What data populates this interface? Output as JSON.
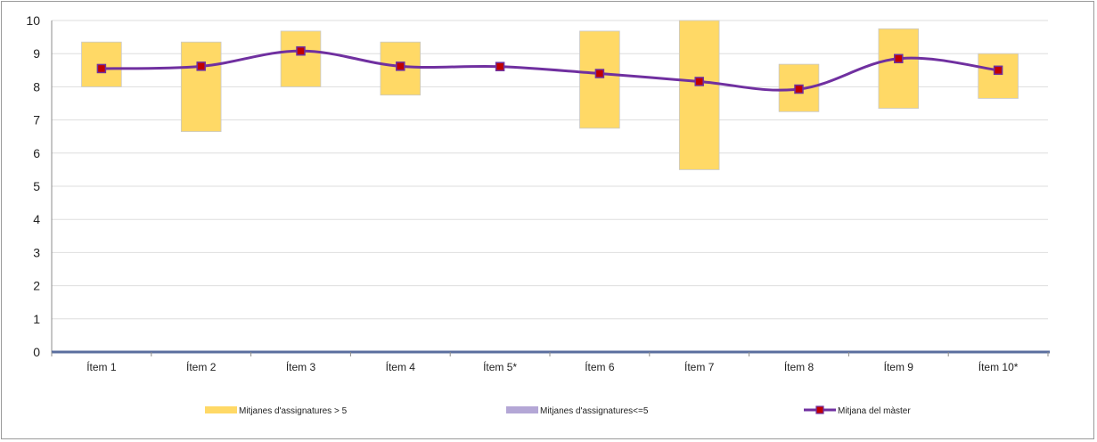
{
  "chart_data": {
    "type": "line",
    "categories": [
      "Ítem 1",
      "Ítem 2",
      "Ítem 3",
      "Ítem 4",
      "Ítem 5*",
      "Ítem 6",
      "Ítem 7",
      "Ítem 8",
      "Ítem 9",
      "Ítem 10*"
    ],
    "ylim": [
      0,
      10
    ],
    "yticks": [
      "0",
      "1",
      "2",
      "3",
      "4",
      "5",
      "6",
      "7",
      "8",
      "9",
      "10"
    ],
    "grid": true,
    "legend_position": "bottom",
    "series": [
      {
        "name": "Mitjanes d'assignatures > 5",
        "kind": "range-bar",
        "color": "#FFD966",
        "low": [
          8.0,
          6.65,
          8.0,
          7.75,
          null,
          6.75,
          5.5,
          7.25,
          7.35,
          7.65
        ],
        "high": [
          9.35,
          9.35,
          9.68,
          9.35,
          null,
          9.68,
          10.0,
          8.68,
          9.75,
          9.0
        ]
      },
      {
        "name": "Mitjanes d'assignatures<=5",
        "kind": "range-bar",
        "color": "#B4A7D6",
        "low": [
          null,
          null,
          null,
          null,
          null,
          null,
          null,
          null,
          null,
          null
        ],
        "high": [
          null,
          null,
          null,
          null,
          null,
          null,
          null,
          null,
          null,
          null
        ]
      },
      {
        "name": "Mitjana del màster",
        "kind": "line",
        "color": "#7030A0",
        "marker_color": "#C00000",
        "values": [
          8.55,
          8.62,
          9.08,
          8.62,
          8.61,
          8.4,
          8.16,
          7.93,
          8.85,
          8.5
        ]
      }
    ]
  }
}
